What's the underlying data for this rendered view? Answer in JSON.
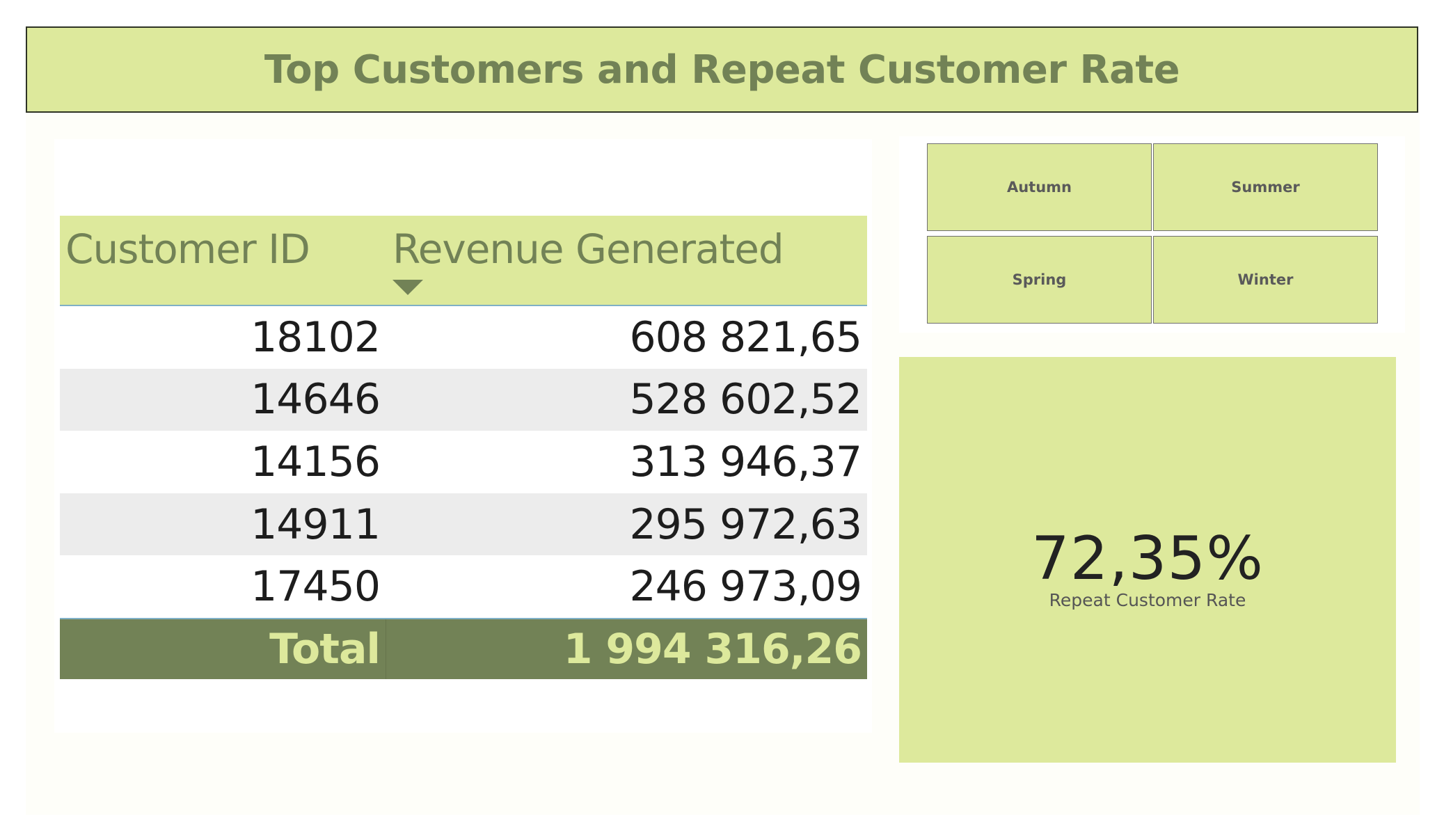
{
  "header": {
    "title": "Top Customers and Repeat Customer Rate"
  },
  "table": {
    "columns": [
      "Customer ID",
      "Revenue Generated"
    ],
    "sorted_column": "Revenue Generated",
    "sort_direction": "descending",
    "rows": [
      {
        "customer_id": "18102",
        "revenue": "608 821,65"
      },
      {
        "customer_id": "14646",
        "revenue": "528 602,52"
      },
      {
        "customer_id": "14156",
        "revenue": "313 946,37"
      },
      {
        "customer_id": "14911",
        "revenue": "295 972,63"
      },
      {
        "customer_id": "17450",
        "revenue": "246 973,09"
      }
    ],
    "total": {
      "label": "Total",
      "value": "1 994 316,26"
    }
  },
  "slicer": {
    "options": [
      "Autumn",
      "Summer",
      "Spring",
      "Winter"
    ]
  },
  "kpi": {
    "value": "72,35%",
    "label": "Repeat Customer Rate"
  },
  "colors": {
    "accent_light": "#dde99c",
    "accent_dark": "#728256",
    "row_alt": "#ececec"
  }
}
